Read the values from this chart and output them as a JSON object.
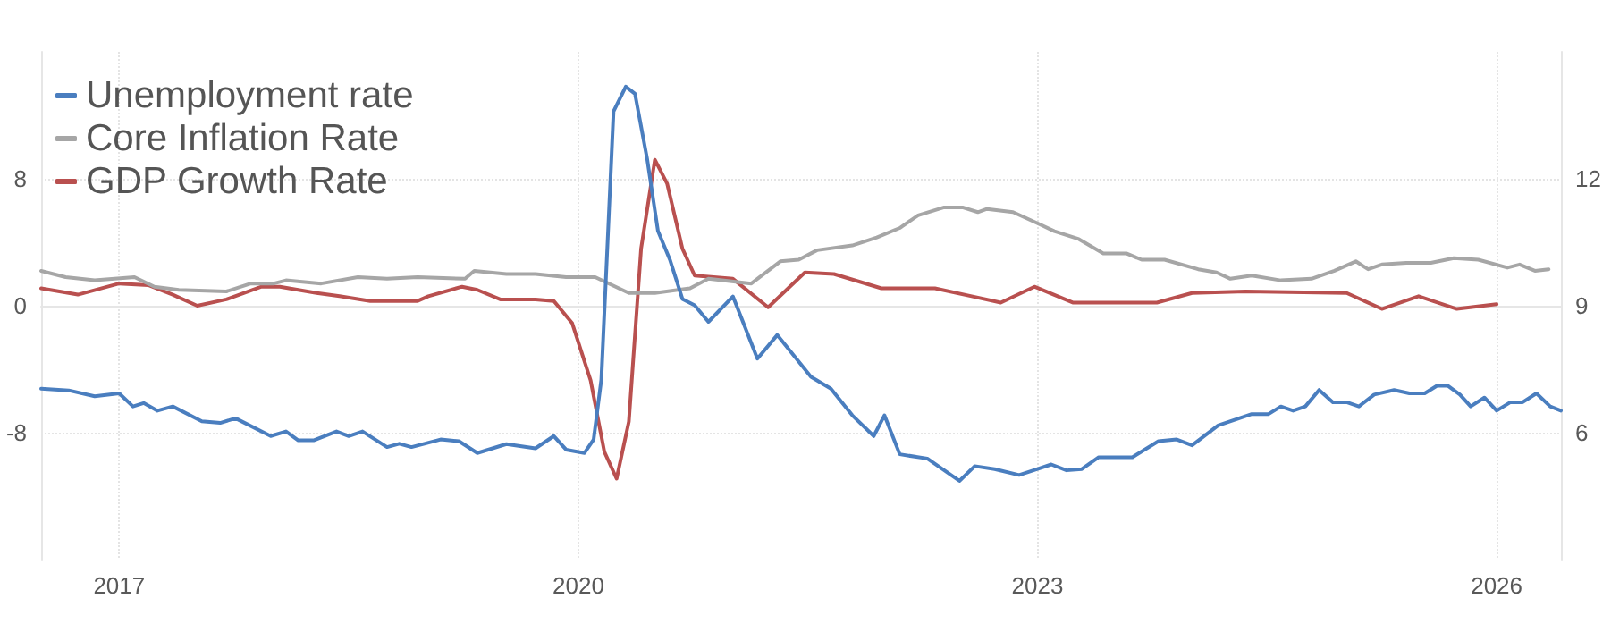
{
  "chart_data": {
    "type": "line",
    "xlim": [
      2016.49,
      2026.42
    ],
    "xticks": [
      2017,
      2020,
      2023,
      2026
    ],
    "ylim": [
      -16,
      16
    ],
    "yticks": [
      -8,
      0,
      8
    ],
    "y2lim": [
      3,
      15
    ],
    "y2ticks": [
      6,
      9,
      12
    ],
    "grid": true,
    "legend": "top left",
    "marker": "none",
    "line_style": "solid",
    "series": [
      {
        "name": "Unemployment rate",
        "color": "#4a7ebf",
        "axis": "y2",
        "x": [
          2016.49,
          2016.67,
          2016.84,
          2017.0,
          2017.09,
          2017.16,
          2017.25,
          2017.35,
          2017.54,
          2017.66,
          2017.76,
          2017.99,
          2018.09,
          2018.17,
          2018.27,
          2018.42,
          2018.5,
          2018.59,
          2018.75,
          2018.83,
          2018.91,
          2019.1,
          2019.22,
          2019.34,
          2019.53,
          2019.72,
          2019.84,
          2019.92,
          2020.04,
          2020.1,
          2020.15,
          2020.23,
          2020.31,
          2020.37,
          2020.45,
          2020.52,
          2020.6,
          2020.68,
          2020.76,
          2020.85,
          2021.01,
          2021.17,
          2021.3,
          2021.52,
          2021.65,
          2021.79,
          2021.93,
          2022.0,
          2022.1,
          2022.28,
          2022.49,
          2022.59,
          2022.72,
          2022.88,
          2023.0,
          2023.09,
          2023.19,
          2023.29,
          2023.4,
          2023.62,
          2023.79,
          2023.91,
          2024.01,
          2024.18,
          2024.4,
          2024.51,
          2024.59,
          2024.67,
          2024.75,
          2024.84,
          2024.93,
          2025.02,
          2025.1,
          2025.2,
          2025.33,
          2025.43,
          2025.53,
          2025.61,
          2025.68,
          2025.76,
          2025.83,
          2025.92,
          2026.0,
          2026.09,
          2026.17,
          2026.26,
          2026.35,
          2026.42
        ],
        "values": [
          7.04,
          7.0,
          6.86,
          6.93,
          6.62,
          6.7,
          6.52,
          6.62,
          6.27,
          6.23,
          6.34,
          5.92,
          6.03,
          5.82,
          5.82,
          6.03,
          5.92,
          6.03,
          5.66,
          5.74,
          5.66,
          5.84,
          5.8,
          5.52,
          5.73,
          5.63,
          5.92,
          5.6,
          5.52,
          5.84,
          7.25,
          13.59,
          14.18,
          14.01,
          12.46,
          10.77,
          10.07,
          9.16,
          9.01,
          8.62,
          9.22,
          7.75,
          8.31,
          7.32,
          7.04,
          6.41,
          5.92,
          6.41,
          5.49,
          5.39,
          4.86,
          5.21,
          5.14,
          5.0,
          5.14,
          5.25,
          5.11,
          5.14,
          5.42,
          5.42,
          5.8,
          5.84,
          5.7,
          6.17,
          6.44,
          6.44,
          6.62,
          6.52,
          6.62,
          7.01,
          6.72,
          6.72,
          6.62,
          6.9,
          7.01,
          6.93,
          6.93,
          7.11,
          7.11,
          6.9,
          6.62,
          6.83,
          6.52,
          6.72,
          6.72,
          6.93,
          6.62,
          6.52
        ]
      },
      {
        "name": "Core Inflation Rate",
        "color": "#a6a6a6",
        "x": [
          2016.49,
          2016.65,
          2016.84,
          2017.1,
          2017.23,
          2017.39,
          2017.7,
          2017.86,
          2018.01,
          2018.09,
          2018.32,
          2018.56,
          2018.75,
          2018.95,
          2019.26,
          2019.32,
          2019.53,
          2019.72,
          2019.92,
          2020.11,
          2020.33,
          2020.5,
          2020.73,
          2020.85,
          2021.13,
          2021.32,
          2021.44,
          2021.56,
          2021.79,
          2021.95,
          2022.1,
          2022.22,
          2022.39,
          2022.51,
          2022.61,
          2022.67,
          2022.84,
          2023.0,
          2023.11,
          2023.27,
          2023.43,
          2023.58,
          2023.68,
          2023.83,
          2024.05,
          2024.17,
          2024.26,
          2024.4,
          2024.59,
          2024.79,
          2024.94,
          2025.08,
          2025.16,
          2025.25,
          2025.41,
          2025.57,
          2025.72,
          2025.88,
          2026.07,
          2026.15,
          2026.25,
          2026.34
        ],
        "values": [
          2.2,
          1.8,
          1.6,
          1.8,
          1.2,
          1.0,
          0.9,
          1.4,
          1.4,
          1.6,
          1.4,
          1.8,
          1.7,
          1.8,
          1.7,
          2.2,
          2.0,
          2.0,
          1.8,
          1.8,
          0.8,
          0.8,
          1.1,
          1.7,
          1.4,
          2.8,
          2.9,
          3.5,
          3.8,
          4.3,
          4.9,
          5.7,
          6.2,
          6.2,
          5.9,
          6.1,
          5.9,
          5.2,
          4.7,
          4.2,
          3.3,
          3.3,
          2.9,
          2.9,
          2.3,
          2.1,
          1.7,
          1.9,
          1.6,
          1.7,
          2.2,
          2.8,
          2.3,
          2.6,
          2.7,
          2.7,
          3.0,
          2.9,
          2.4,
          2.6,
          2.2,
          2.3
        ]
      },
      {
        "name": "GDP Growth Rate",
        "color": "#b9504f",
        "x": [
          2016.49,
          2016.73,
          2017.0,
          2017.19,
          2017.35,
          2017.51,
          2017.7,
          2017.93,
          2018.05,
          2018.29,
          2018.44,
          2018.64,
          2018.95,
          2019.02,
          2019.24,
          2019.34,
          2019.49,
          2019.72,
          2019.84,
          2019.96,
          2020.08,
          2020.17,
          2020.25,
          2020.33,
          2020.41,
          2020.5,
          2020.58,
          2020.68,
          2020.76,
          2021.01,
          2021.24,
          2021.48,
          2021.67,
          2021.98,
          2022.33,
          2022.57,
          2022.76,
          2022.98,
          2023.23,
          2023.78,
          2024.01,
          2024.36,
          2025.02,
          2025.25,
          2025.49,
          2025.74,
          2026.0
        ],
        "values": [
          1.1,
          0.7,
          1.4,
          1.3,
          0.7,
          0.0,
          0.4,
          1.2,
          1.2,
          0.8,
          0.6,
          0.3,
          0.3,
          0.6,
          1.2,
          1.0,
          0.4,
          0.4,
          0.3,
          -1.1,
          -4.7,
          -9.2,
          -10.9,
          -7.3,
          3.6,
          9.2,
          7.7,
          3.6,
          1.9,
          1.7,
          -0.1,
          2.1,
          2.0,
          1.1,
          1.1,
          0.6,
          0.2,
          1.2,
          0.2,
          0.2,
          0.8,
          0.9,
          0.8,
          -0.2,
          0.6,
          -0.2,
          0.1
        ]
      }
    ]
  }
}
